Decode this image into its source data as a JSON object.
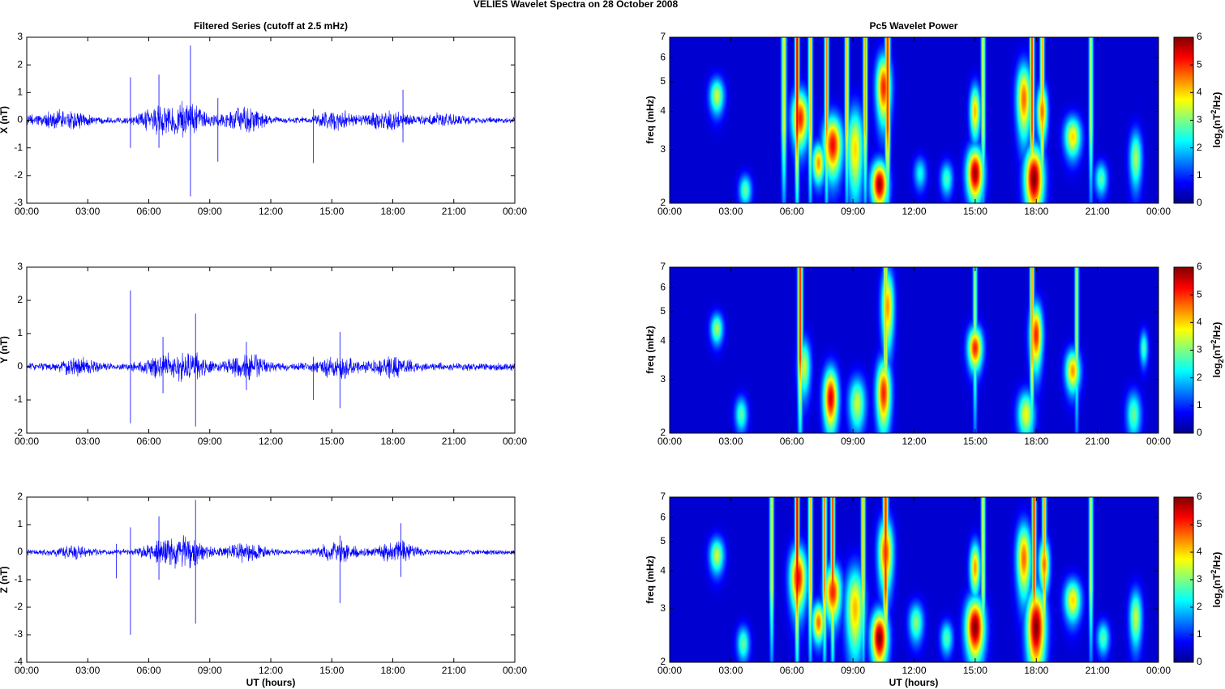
{
  "figure": {
    "title": "VELIES Wavelet Spectra on 28 October   2008",
    "left_title": "Filtered Series (cutoff at 2.5 mHz)",
    "right_title": "Pc5 Wavelet Power",
    "xlabel": "UT (hours)",
    "time_ticks": [
      "00:00",
      "03:00",
      "06:00",
      "09:00",
      "12:00",
      "15:00",
      "18:00",
      "21:00",
      "00:00"
    ],
    "freq_label": "freq (mHz)",
    "freq_ticks": [
      "2",
      "3",
      "4",
      "5",
      "6",
      "7"
    ],
    "colorbar_ticks": [
      "0",
      "1",
      "2",
      "3",
      "4",
      "5",
      "6"
    ],
    "colorbar_label_parts": [
      "log",
      "2",
      "(nT",
      "2",
      "/Hz)"
    ]
  },
  "colors": {
    "trace": "#0000ff",
    "axes": "#000000"
  },
  "chart_data": [
    {
      "type": "line",
      "component": "X",
      "ylabel": "X (nT)",
      "y_ticks": [
        "3",
        "2",
        "1",
        "0",
        "-1",
        "-2",
        "-3"
      ],
      "ylim": [
        -3,
        3
      ],
      "xlim_hours": [
        0,
        24
      ],
      "series": [
        {
          "noise": 0.08
        }
      ],
      "bursts": [
        [
          1.0,
          0.13
        ],
        [
          2.2,
          0.16
        ],
        [
          6.5,
          0.3
        ],
        [
          7.9,
          0.36
        ],
        [
          10.7,
          0.3
        ],
        [
          15.2,
          0.2
        ],
        [
          17.8,
          0.28
        ],
        [
          20.5,
          0.12
        ]
      ],
      "spikes": [
        [
          5.1,
          1.55,
          -1.0
        ],
        [
          6.5,
          1.65,
          -1.0
        ],
        [
          8.05,
          2.7,
          -2.75
        ],
        [
          9.4,
          0.8,
          -1.5
        ],
        [
          14.1,
          0.4,
          -1.55
        ],
        [
          18.5,
          1.1,
          -0.8
        ]
      ]
    },
    {
      "type": "line",
      "component": "Y",
      "ylabel": "Y (nT)",
      "y_ticks": [
        "3",
        "2",
        "1",
        "0",
        "-1",
        "-2"
      ],
      "ylim": [
        -2,
        3
      ],
      "xlim_hours": [
        0,
        24
      ],
      "series": [
        {
          "noise": 0.08
        }
      ],
      "bursts": [
        [
          2.5,
          0.12
        ],
        [
          6.6,
          0.18
        ],
        [
          8.0,
          0.25
        ],
        [
          10.8,
          0.22
        ],
        [
          15.3,
          0.2
        ],
        [
          18.0,
          0.18
        ]
      ],
      "spikes": [
        [
          5.1,
          2.3,
          -1.7
        ],
        [
          6.7,
          0.9,
          -0.8
        ],
        [
          8.3,
          1.6,
          -1.8
        ],
        [
          14.1,
          0.3,
          -1.0
        ],
        [
          15.4,
          1.05,
          -1.25
        ],
        [
          10.8,
          0.75,
          -0.7
        ]
      ]
    },
    {
      "type": "line",
      "component": "Z",
      "ylabel": "Z (nT)",
      "y_ticks": [
        "2",
        "1",
        "0",
        "-1",
        "-2",
        "-3",
        "-4"
      ],
      "ylim": [
        -4,
        2
      ],
      "xlim_hours": [
        0,
        24
      ],
      "series": [
        {
          "noise": 0.07
        }
      ],
      "bursts": [
        [
          2.3,
          0.12
        ],
        [
          6.7,
          0.25
        ],
        [
          8.0,
          0.33
        ],
        [
          10.8,
          0.22
        ],
        [
          15.3,
          0.22
        ],
        [
          18.2,
          0.25
        ]
      ],
      "spikes": [
        [
          4.4,
          0.3,
          -0.95
        ],
        [
          5.1,
          0.9,
          -3.0
        ],
        [
          6.5,
          1.3,
          -1.0
        ],
        [
          8.3,
          1.9,
          -2.6
        ],
        [
          15.4,
          0.6,
          -1.85
        ],
        [
          18.4,
          1.05,
          -0.9
        ]
      ]
    },
    {
      "type": "heatmap",
      "component": "X",
      "x_hours": [
        0,
        24
      ],
      "y_freq_mhz": [
        2,
        7
      ],
      "color_range": [
        0,
        6
      ],
      "blobs": [
        [
          2.3,
          4.5,
          0.35,
          0.6,
          3.2
        ],
        [
          3.7,
          2.2,
          0.3,
          0.25,
          2.6
        ],
        [
          6.4,
          3.8,
          0.4,
          0.8,
          5.0
        ],
        [
          7.3,
          2.7,
          0.3,
          0.4,
          4.2
        ],
        [
          8.0,
          3.1,
          0.45,
          0.7,
          5.2
        ],
        [
          9.1,
          3.0,
          0.4,
          1.0,
          3.8
        ],
        [
          10.3,
          2.3,
          0.4,
          0.4,
          5.8
        ],
        [
          10.5,
          4.8,
          0.35,
          1.2,
          5.0
        ],
        [
          12.3,
          2.5,
          0.3,
          0.3,
          2.0
        ],
        [
          13.6,
          2.4,
          0.3,
          0.3,
          2.4
        ],
        [
          15.0,
          2.5,
          0.4,
          0.5,
          5.8
        ],
        [
          15.0,
          4.0,
          0.25,
          0.8,
          4.0
        ],
        [
          17.4,
          4.4,
          0.35,
          1.2,
          4.5
        ],
        [
          17.9,
          2.4,
          0.45,
          0.6,
          6.0
        ],
        [
          18.3,
          4.0,
          0.25,
          0.8,
          4.5
        ],
        [
          19.8,
          3.3,
          0.4,
          0.5,
          3.8
        ],
        [
          21.2,
          2.4,
          0.3,
          0.3,
          2.5
        ],
        [
          22.9,
          2.8,
          0.3,
          0.6,
          3.0
        ]
      ],
      "streaks": [
        [
          5.6,
          0.12,
          3.5
        ],
        [
          6.25,
          0.1,
          5.5
        ],
        [
          6.9,
          0.1,
          4.0
        ],
        [
          7.7,
          0.1,
          4.5
        ],
        [
          8.7,
          0.1,
          4.0
        ],
        [
          9.6,
          0.1,
          4.2
        ],
        [
          10.7,
          0.12,
          5.0
        ],
        [
          15.4,
          0.1,
          3.5
        ],
        [
          17.8,
          0.1,
          5.0
        ],
        [
          18.3,
          0.1,
          4.2
        ],
        [
          20.7,
          0.1,
          3.2
        ]
      ]
    },
    {
      "type": "heatmap",
      "component": "Y",
      "x_hours": [
        0,
        24
      ],
      "y_freq_mhz": [
        2,
        7
      ],
      "color_range": [
        0,
        6
      ],
      "blobs": [
        [
          2.3,
          4.4,
          0.3,
          0.5,
          3.0
        ],
        [
          3.5,
          2.3,
          0.3,
          0.3,
          2.5
        ],
        [
          6.6,
          3.3,
          0.3,
          0.7,
          3.2
        ],
        [
          7.9,
          2.6,
          0.35,
          0.6,
          5.4
        ],
        [
          9.2,
          2.5,
          0.4,
          0.5,
          3.2
        ],
        [
          10.5,
          2.7,
          0.35,
          0.7,
          5.0
        ],
        [
          10.7,
          5.2,
          0.3,
          1.5,
          4.2
        ],
        [
          15.0,
          3.8,
          0.35,
          0.6,
          5.0
        ],
        [
          17.5,
          2.3,
          0.4,
          0.4,
          3.5
        ],
        [
          18.0,
          4.2,
          0.3,
          1.0,
          5.0
        ],
        [
          19.8,
          3.2,
          0.35,
          0.5,
          4.2
        ],
        [
          22.8,
          2.3,
          0.35,
          0.4,
          2.6
        ],
        [
          23.3,
          3.8,
          0.2,
          0.5,
          2.4
        ]
      ],
      "streaks": [
        [
          6.4,
          0.12,
          5.0
        ],
        [
          10.6,
          0.1,
          4.0
        ],
        [
          15.0,
          0.1,
          3.0
        ],
        [
          17.8,
          0.1,
          4.2
        ],
        [
          20.0,
          0.1,
          3.0
        ]
      ]
    },
    {
      "type": "heatmap",
      "component": "Z",
      "x_hours": [
        0,
        24
      ],
      "y_freq_mhz": [
        2,
        7
      ],
      "color_range": [
        0,
        6
      ],
      "blobs": [
        [
          2.3,
          4.5,
          0.35,
          0.6,
          3.2
        ],
        [
          3.6,
          2.3,
          0.3,
          0.3,
          2.6
        ],
        [
          6.3,
          3.8,
          0.4,
          0.9,
          5.2
        ],
        [
          7.3,
          2.7,
          0.3,
          0.4,
          4.5
        ],
        [
          8.0,
          3.4,
          0.4,
          0.7,
          5.0
        ],
        [
          9.1,
          3.0,
          0.45,
          1.0,
          4.0
        ],
        [
          10.3,
          2.4,
          0.4,
          0.5,
          6.0
        ],
        [
          10.6,
          4.6,
          0.35,
          1.2,
          4.8
        ],
        [
          12.1,
          2.7,
          0.35,
          0.4,
          2.8
        ],
        [
          13.6,
          2.4,
          0.3,
          0.3,
          2.5
        ],
        [
          15.0,
          2.6,
          0.45,
          0.6,
          6.0
        ],
        [
          15.0,
          4.1,
          0.25,
          0.8,
          4.2
        ],
        [
          17.4,
          4.4,
          0.35,
          1.2,
          4.5
        ],
        [
          18.0,
          2.6,
          0.45,
          0.8,
          6.0
        ],
        [
          18.4,
          4.2,
          0.25,
          0.8,
          4.5
        ],
        [
          19.8,
          3.2,
          0.4,
          0.5,
          3.8
        ],
        [
          21.3,
          2.4,
          0.3,
          0.3,
          2.5
        ],
        [
          22.9,
          2.8,
          0.3,
          0.6,
          3.2
        ]
      ],
      "streaks": [
        [
          5.0,
          0.1,
          3.5
        ],
        [
          6.25,
          0.1,
          5.5
        ],
        [
          6.9,
          0.1,
          4.0
        ],
        [
          7.6,
          0.1,
          4.5
        ],
        [
          8.0,
          0.1,
          5.0
        ],
        [
          9.5,
          0.1,
          4.0
        ],
        [
          10.6,
          0.12,
          5.0
        ],
        [
          15.4,
          0.1,
          3.5
        ],
        [
          17.9,
          0.1,
          5.0
        ],
        [
          18.4,
          0.1,
          4.2
        ],
        [
          20.7,
          0.1,
          3.2
        ]
      ]
    }
  ]
}
